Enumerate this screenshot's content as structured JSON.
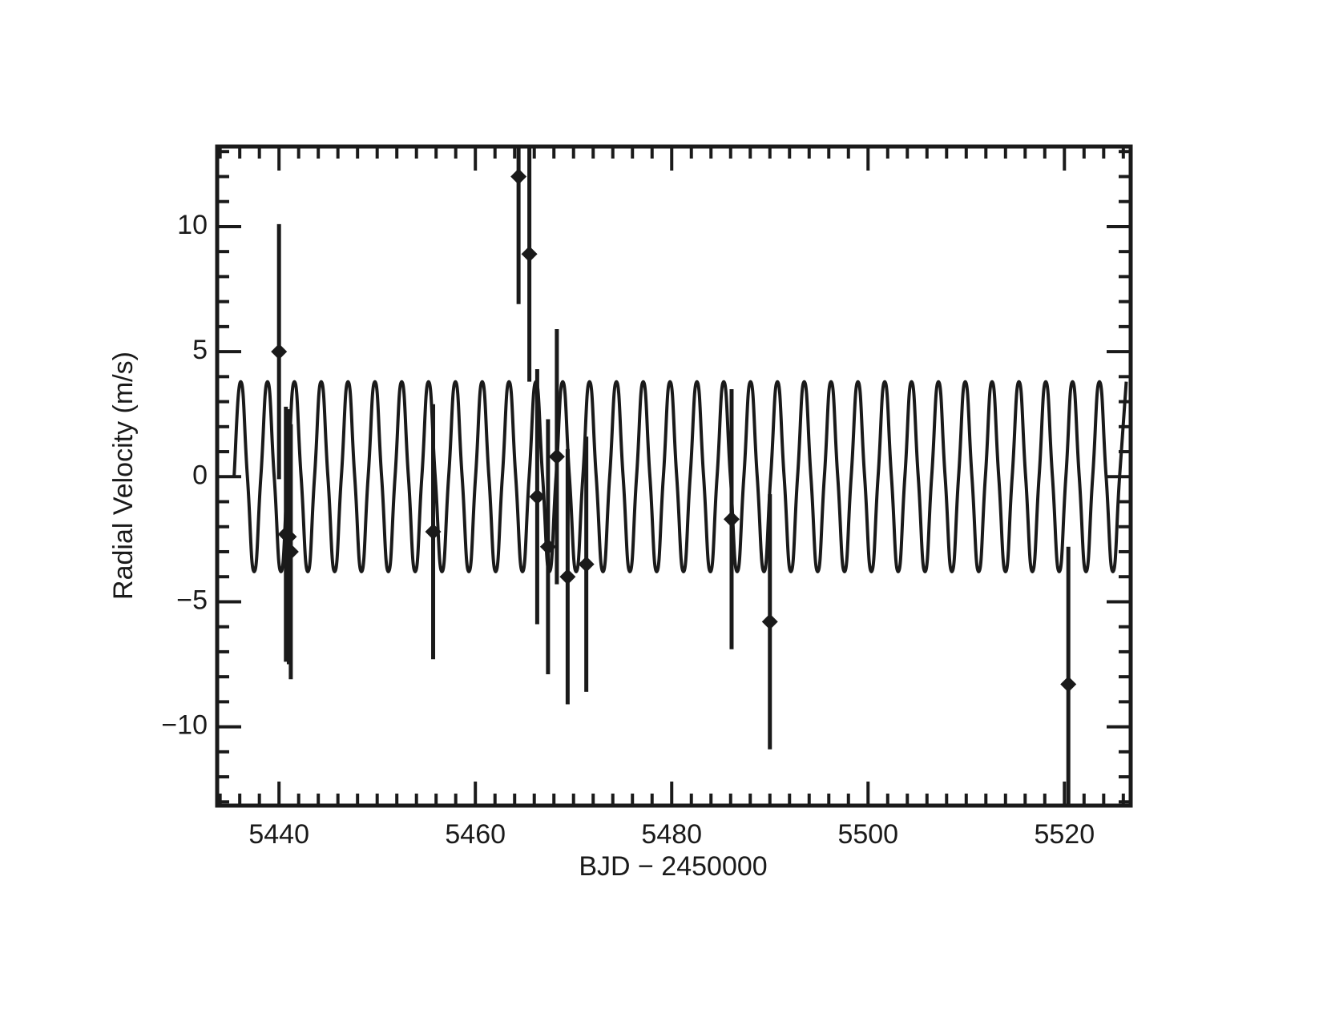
{
  "chart_data": {
    "type": "scatter",
    "xlabel": "BJD − 2450000",
    "ylabel": "Radial Velocity (m/s)",
    "xlim": [
      5433.7,
      5526.75
    ],
    "ylim": [
      -13.15,
      13.2
    ],
    "xticks": [
      5440,
      5460,
      5480,
      5500,
      5520
    ],
    "xticks_minor": [
      5434,
      5436,
      5438,
      5442,
      5444,
      5446,
      5448,
      5450,
      5452,
      5454,
      5456,
      5458,
      5462,
      5464,
      5466,
      5468,
      5470,
      5472,
      5474,
      5476,
      5478,
      5482,
      5484,
      5486,
      5488,
      5490,
      5492,
      5494,
      5496,
      5498,
      5502,
      5504,
      5506,
      5508,
      5510,
      5512,
      5514,
      5516,
      5518,
      5522,
      5524,
      5526
    ],
    "yticks": [
      {
        "value": -10,
        "label": "−10"
      },
      {
        "value": -5,
        "label": "−5"
      },
      0,
      5,
      10
    ],
    "yticks_minor": [
      -13,
      -12,
      -11,
      -9,
      -8,
      -7,
      -6,
      -4,
      -3,
      -2,
      -1,
      1,
      2,
      3,
      4,
      6,
      7,
      8,
      9,
      11,
      12,
      13
    ],
    "series": [
      {
        "type": "line",
        "color": "#1a1a1a",
        "x": [
          5435.42,
          5436.1,
          5436.78,
          5437.47,
          5438.15,
          5438.83,
          5439.51,
          5440.2,
          5440.88,
          5441.57,
          5442.25,
          5442.94,
          5443.62,
          5444.3,
          5444.98,
          5445.67,
          5446.35,
          5447.03,
          5447.71,
          5448.4,
          5449.08,
          5449.77,
          5450.45,
          5451.14,
          5451.82,
          5452.5,
          5453.18,
          5453.87,
          5454.55,
          5455.23,
          5455.91,
          5456.6,
          5457.28,
          5457.97,
          5458.65,
          5459.34,
          5460.02,
          5460.7,
          5461.38,
          5462.07,
          5462.75,
          5463.43,
          5464.11,
          5464.8,
          5465.48,
          5466.17,
          5466.85,
          5467.54,
          5468.22,
          5468.9,
          5469.58,
          5470.27,
          5470.95,
          5471.63,
          5472.31,
          5473.0,
          5473.68,
          5474.37,
          5475.05,
          5475.74,
          5476.42,
          5477.1,
          5477.78,
          5478.47,
          5479.15,
          5479.83,
          5480.51,
          5481.2,
          5481.88,
          5482.57,
          5483.25,
          5483.94,
          5484.62,
          5485.3,
          5485.98,
          5486.67,
          5487.35,
          5488.03,
          5488.71,
          5489.4,
          5490.08,
          5490.77,
          5491.45,
          5492.14,
          5492.82,
          5493.5,
          5494.18,
          5494.87,
          5495.55,
          5496.23,
          5496.91,
          5497.6,
          5498.28,
          5498.97,
          5499.65,
          5500.34,
          5501.02,
          5501.7,
          5502.38,
          5503.07,
          5503.75,
          5504.43,
          5505.11,
          5505.8,
          5506.48,
          5507.17,
          5507.85,
          5508.54,
          5509.22,
          5509.9,
          5510.58,
          5511.27,
          5511.95,
          5512.63,
          5513.31,
          5514.0,
          5514.68,
          5515.37,
          5516.05,
          5516.74,
          5517.42,
          5518.1,
          5518.78,
          5519.47,
          5520.15,
          5520.83,
          5521.51,
          5522.2,
          5522.88,
          5523.57,
          5524.25,
          5524.94,
          5525.62,
          5526.3
        ],
        "values": [
          0,
          3.8,
          0,
          -3.8,
          0,
          3.8,
          0,
          -3.8,
          0,
          3.8,
          0,
          -3.8,
          0,
          3.8,
          0,
          -3.8,
          0,
          3.8,
          0,
          -3.8,
          0,
          3.8,
          0,
          -3.8,
          0,
          3.8,
          0,
          -3.8,
          0,
          3.8,
          0,
          -3.8,
          0,
          3.8,
          0,
          -3.8,
          0,
          3.8,
          0,
          -3.8,
          0,
          3.8,
          0,
          -3.8,
          0,
          3.8,
          0,
          -3.8,
          0,
          3.8,
          0,
          -3.8,
          0,
          3.8,
          0,
          -3.8,
          0,
          3.8,
          0,
          -3.8,
          0,
          3.8,
          0,
          -3.8,
          0,
          3.8,
          0,
          -3.8,
          0,
          3.8,
          0,
          -3.8,
          0,
          3.8,
          0,
          -3.8,
          0,
          3.8,
          0,
          -3.8,
          0,
          3.8,
          0,
          -3.8,
          0,
          3.8,
          0,
          -3.8,
          0,
          3.8,
          0,
          -3.8,
          0,
          3.8,
          0,
          -3.8,
          0,
          3.8,
          0,
          -3.8,
          0,
          3.8,
          0,
          -3.8,
          0,
          3.8,
          0,
          -3.8,
          0,
          3.8,
          0,
          -3.8,
          0,
          3.8,
          0,
          -3.8,
          0,
          3.8,
          0,
          -3.8,
          0,
          3.8,
          0,
          -3.8,
          0,
          3.8,
          0,
          -3.8,
          0,
          3.8,
          0,
          -3.8,
          0,
          3.8
        ]
      },
      {
        "type": "errorbar",
        "marker": "diamond",
        "color": "#1a1a1a",
        "x": [
          5440.0,
          5440.7,
          5441.0,
          5441.2,
          5455.7,
          5464.4,
          5465.5,
          5466.3,
          5467.4,
          5468.3,
          5469.4,
          5471.3,
          5486.1,
          5490.0,
          5520.4
        ],
        "values": [
          5.0,
          -2.3,
          -2.4,
          -3.0,
          -2.2,
          12.0,
          8.9,
          -0.8,
          -2.8,
          0.8,
          -4.0,
          -3.5,
          -1.7,
          -5.8,
          -8.3
        ],
        "errors": [
          5.1,
          5.1,
          5.1,
          5.1,
          5.1,
          5.1,
          5.1,
          5.1,
          5.1,
          5.1,
          5.1,
          5.1,
          5.2,
          5.1,
          5.5
        ]
      }
    ]
  }
}
